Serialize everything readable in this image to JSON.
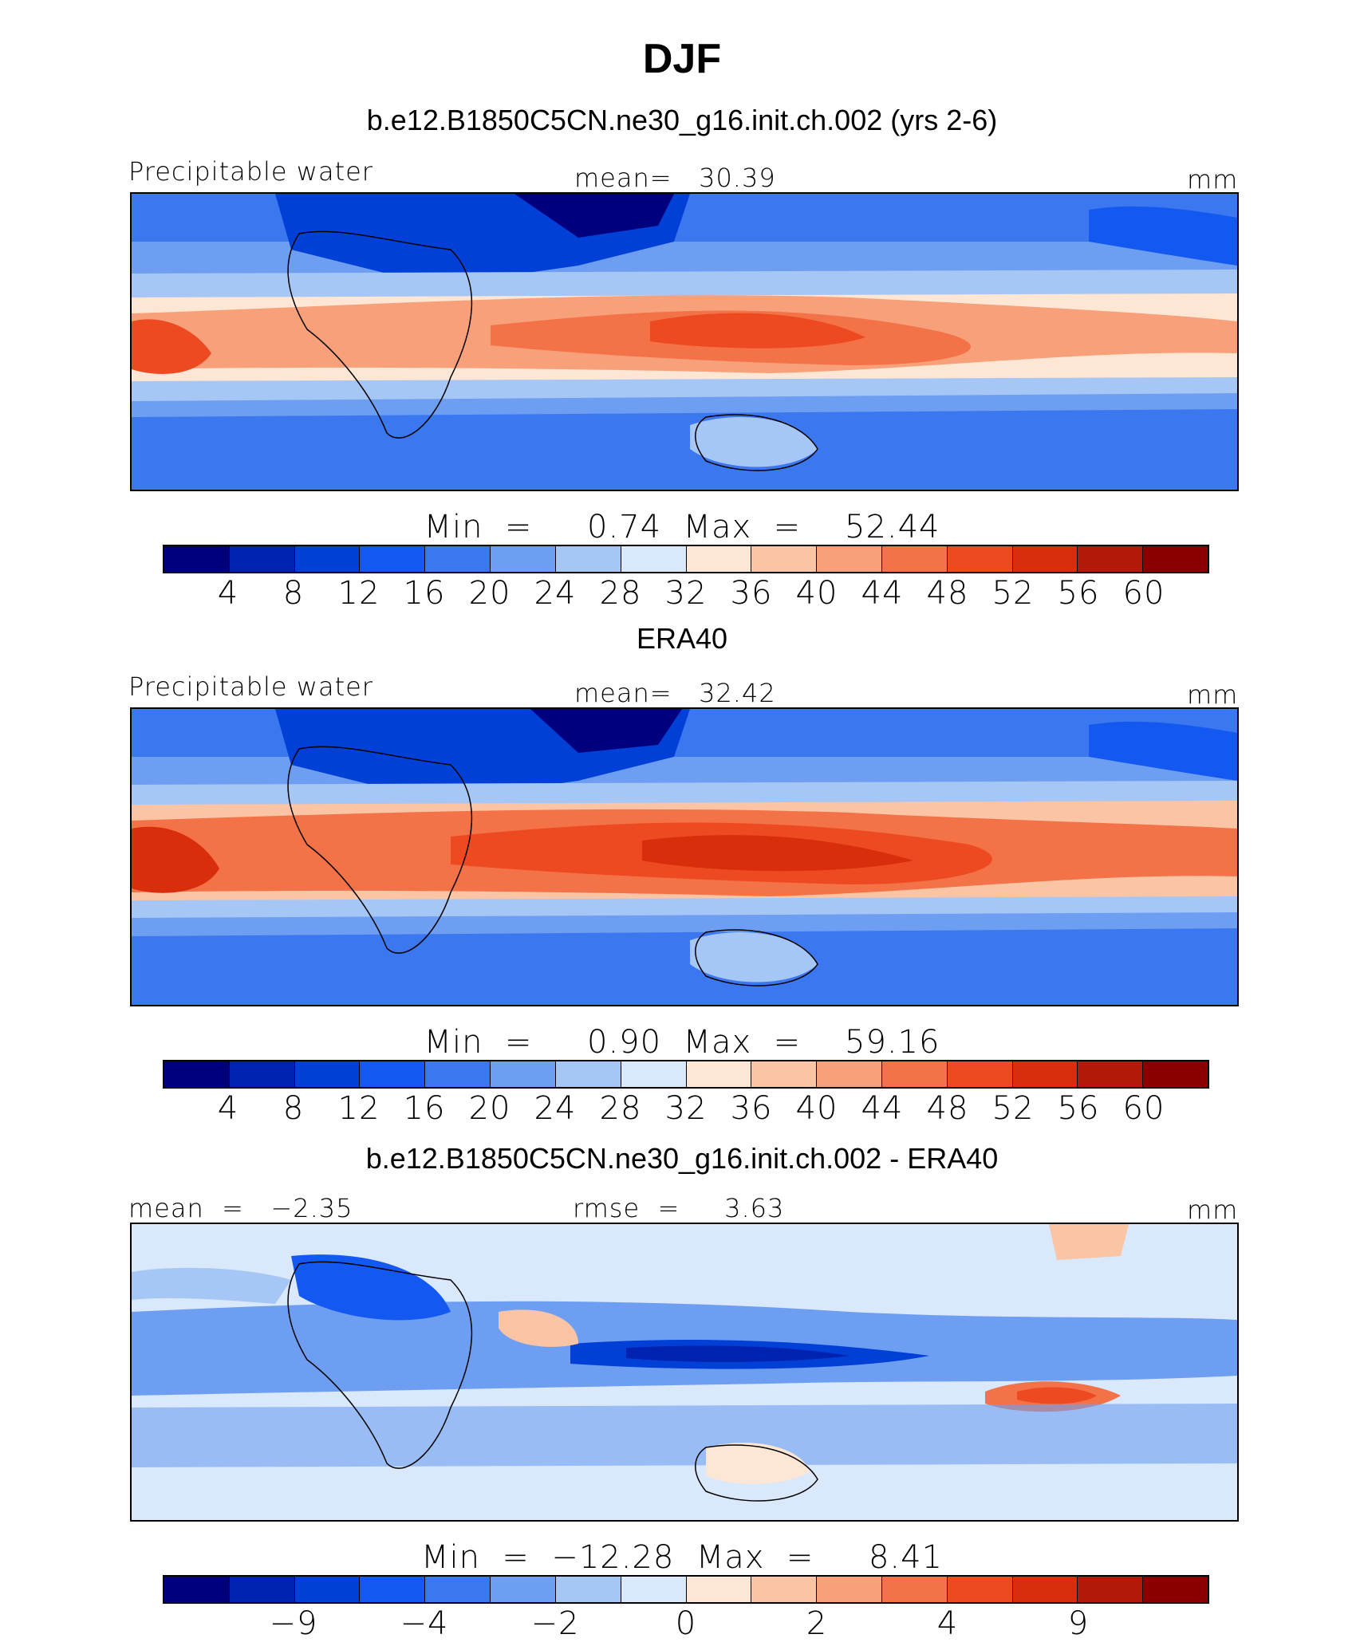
{
  "figure": {
    "title": "DJF",
    "units_label": "mm",
    "colors": [
      "#00007f",
      "#0022b0",
      "#0040d6",
      "#1458f2",
      "#3b78f0",
      "#6e9ef2",
      "#a6c6f6",
      "#d9e8fb",
      "#fde7d4",
      "#fbc4a5",
      "#f8a07a",
      "#f47248",
      "#ee4a22",
      "#d92e0c",
      "#b31808",
      "#8a0000"
    ]
  },
  "panels": [
    {
      "title": "b.e12.B1850C5CN.ne30_g16.init.ch.002 (yrs 2-6)",
      "left_label": "Precipitable water",
      "center_label": "mean=   30.39",
      "right_label": "mm",
      "min_max": "Min  =     0.74  Max  =    52.44",
      "colorbar_ticks": [
        "4",
        "8",
        "12",
        "16",
        "20",
        "24",
        "28",
        "32",
        "36",
        "40",
        "44",
        "48",
        "52",
        "56",
        "60"
      ]
    },
    {
      "title": "ERA40",
      "left_label": "Precipitable water",
      "center_label": "mean=   32.42",
      "right_label": "mm",
      "min_max": "Min  =     0.90  Max  =    59.16",
      "colorbar_ticks": [
        "4",
        "8",
        "12",
        "16",
        "20",
        "24",
        "28",
        "32",
        "36",
        "40",
        "44",
        "48",
        "52",
        "56",
        "60"
      ]
    },
    {
      "title": "b.e12.B1850C5CN.ne30_g16.init.ch.002 - ERA40",
      "left_label": "mean  =   −2.35",
      "center_label": "rmse  =     3.63",
      "right_label": "mm",
      "min_max": "Min  =  −12.28  Max  =     8.41",
      "colorbar_ticks": [
        "−9",
        "−4",
        "−2",
        "0",
        "2",
        "4",
        "9"
      ]
    }
  ],
  "chart_data": {
    "type": "heatmap",
    "season": "DJF",
    "variable": "Precipitable water",
    "units": "mm",
    "panels": [
      {
        "name": "b.e12.B1850C5CN.ne30_g16.init.ch.002 (yrs 2-6)",
        "mean": 30.39,
        "min": 0.74,
        "max": 52.44,
        "contour_levels": [
          4,
          8,
          12,
          16,
          20,
          24,
          28,
          32,
          36,
          40,
          44,
          48,
          52,
          56,
          60
        ]
      },
      {
        "name": "ERA40",
        "mean": 32.42,
        "min": 0.9,
        "max": 59.16,
        "contour_levels": [
          4,
          8,
          12,
          16,
          20,
          24,
          28,
          32,
          36,
          40,
          44,
          48,
          52,
          56,
          60
        ]
      },
      {
        "name": "b.e12.B1850C5CN.ne30_g16.init.ch.002 - ERA40",
        "mean": -2.35,
        "rmse": 3.63,
        "min": -12.28,
        "max": 8.41,
        "contour_levels": [
          -9,
          -4,
          -2,
          0,
          2,
          4,
          9
        ]
      }
    ]
  }
}
